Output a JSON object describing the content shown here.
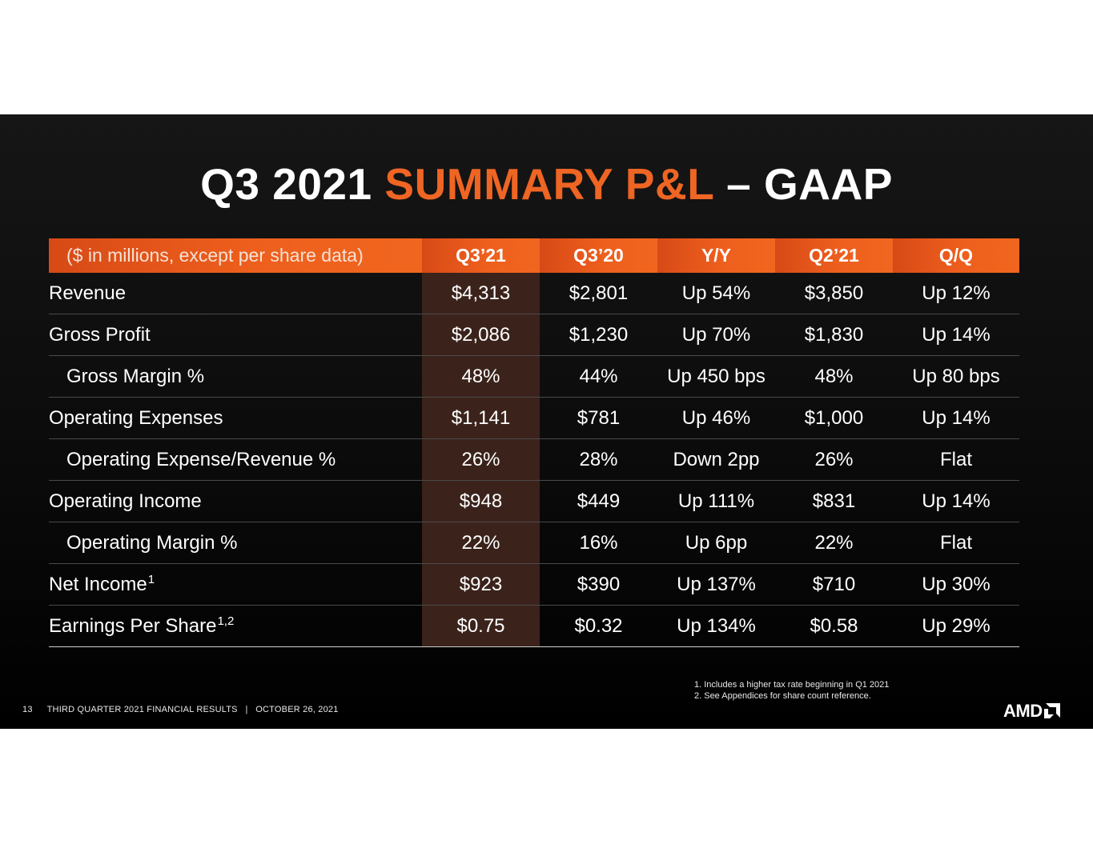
{
  "slide": {
    "title_prefix": "Q3 2021 ",
    "title_accent": "SUMMARY P&L",
    "title_suffix": " – GAAP"
  },
  "table": {
    "headers": [
      "($ in millions, except per share data)",
      "Q3’21",
      "Q3’20",
      "Y/Y",
      "Q2’21",
      "Q/Q"
    ],
    "rows": [
      {
        "label": "Revenue",
        "sup": "",
        "values": [
          "$4,313",
          "$2,801",
          "Up 54%",
          "$3,850",
          "Up 12%"
        ]
      },
      {
        "label": "Gross Profit",
        "sup": "",
        "values": [
          "$2,086",
          "$1,230",
          "Up 70%",
          "$1,830",
          "Up 14%"
        ]
      },
      {
        "label": "Gross Margin %",
        "sup": "",
        "values": [
          "48%",
          "44%",
          "Up 450 bps",
          "48%",
          "Up 80 bps"
        ]
      },
      {
        "label": "Operating Expenses",
        "sup": "",
        "values": [
          "$1,141",
          "$781",
          "Up 46%",
          "$1,000",
          "Up 14%"
        ]
      },
      {
        "label": "Operating Expense/Revenue %",
        "sup": "",
        "values": [
          "26%",
          "28%",
          "Down 2pp",
          "26%",
          "Flat"
        ]
      },
      {
        "label": "Operating Income",
        "sup": "",
        "values": [
          "$948",
          "$449",
          "Up 111%",
          "$831",
          "Up 14%"
        ]
      },
      {
        "label": "Operating Margin %",
        "sup": "",
        "values": [
          "22%",
          "16%",
          "Up 6pp",
          "22%",
          "Flat"
        ]
      },
      {
        "label": "Net Income",
        "sup": "1",
        "values": [
          "$923",
          "$390",
          "Up 137%",
          "$710",
          "Up 30%"
        ]
      },
      {
        "label": "Earnings Per Share",
        "sup": "1,2",
        "values": [
          "$0.75",
          "$0.32",
          "Up 134%",
          "$0.58",
          "Up 29%"
        ]
      }
    ]
  },
  "footnotes": [
    "1. Includes a higher tax rate beginning in Q1 2021",
    "2. See Appendices for share count reference."
  ],
  "footer": {
    "page_number": "13",
    "text": "THIRD QUARTER 2021 FINANCIAL RESULTS   |   OCTOBER 26, 2021"
  },
  "logo": {
    "wordmark": "AMD",
    "icon": "amd-arrow-icon"
  },
  "colors": {
    "accent": "#ef6523",
    "header_bar": "#ee5f1d",
    "highlight_column": "#3b231b",
    "background": "#0b0b0b"
  }
}
